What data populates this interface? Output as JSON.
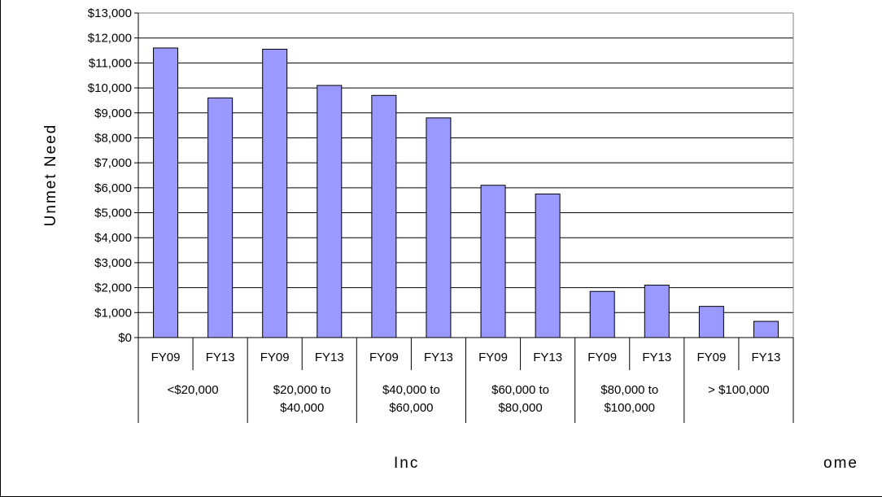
{
  "chart_data": {
    "type": "bar",
    "title": "",
    "xlabel_parts": [
      "Inc",
      "ome"
    ],
    "ylabel": "Unmet Need",
    "ylim": [
      0,
      13000
    ],
    "y_ticks": [
      "$0",
      "$1,000",
      "$2,000",
      "$3,000",
      "$4,000",
      "$5,000",
      "$6,000",
      "$7,000",
      "$8,000",
      "$9,000",
      "$10,000",
      "$11,000",
      "$12,000",
      "$13,000"
    ],
    "y_tick_values": [
      0,
      1000,
      2000,
      3000,
      4000,
      5000,
      6000,
      7000,
      8000,
      9000,
      10000,
      11000,
      12000,
      13000
    ],
    "grid": true,
    "bar_color": "#9999ff",
    "groups": [
      {
        "label_lines": [
          "<$20,000"
        ],
        "bars": [
          {
            "label": "FY09",
            "value": 11600
          },
          {
            "label": "FY13",
            "value": 9600
          }
        ]
      },
      {
        "label_lines": [
          "$20,000 to",
          "$40,000"
        ],
        "bars": [
          {
            "label": "FY09",
            "value": 11550
          },
          {
            "label": "FY13",
            "value": 10100
          }
        ]
      },
      {
        "label_lines": [
          "$40,000 to",
          "$60,000"
        ],
        "bars": [
          {
            "label": "FY09",
            "value": 9700
          },
          {
            "label": "FY13",
            "value": 8800
          }
        ]
      },
      {
        "label_lines": [
          "$60,000 to",
          "$80,000"
        ],
        "bars": [
          {
            "label": "FY09",
            "value": 6100
          },
          {
            "label": "FY13",
            "value": 5750
          }
        ]
      },
      {
        "label_lines": [
          "$80,000 to",
          "$100,000"
        ],
        "bars": [
          {
            "label": "FY09",
            "value": 1850
          },
          {
            "label": "FY13",
            "value": 2100
          }
        ]
      },
      {
        "label_lines": [
          "> $100,000"
        ],
        "bars": [
          {
            "label": "FY09",
            "value": 1250
          },
          {
            "label": "FY13",
            "value": 650
          }
        ]
      }
    ]
  }
}
